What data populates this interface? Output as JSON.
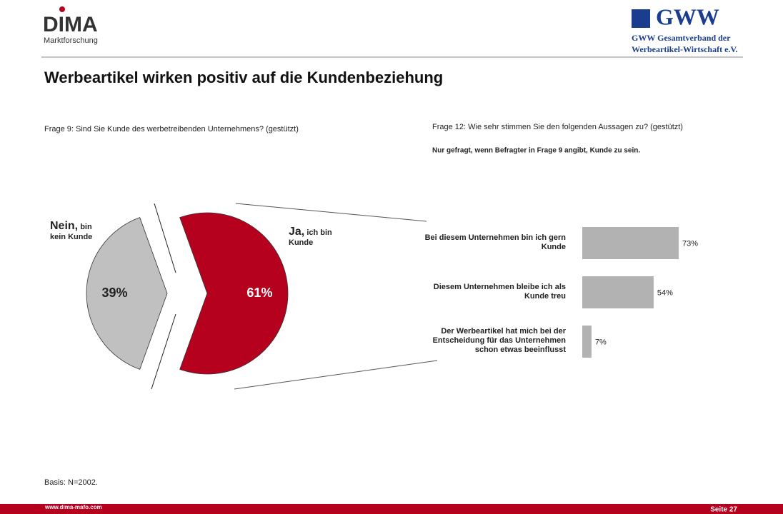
{
  "header": {
    "logo_left": "DIMA",
    "logo_left_sub": "Marktforschung",
    "logo_right": "GWW",
    "logo_right_line1": "GWW Gesamtverband der",
    "logo_right_line2": "Werbeartikel-Wirtschaft e.V."
  },
  "title": "Werbeartikel wirken positiv auf die Kundenbeziehung",
  "chart_data": [
    {
      "type": "pie",
      "subtitle": "Frage 9: Sind Sie Kunde des werbetreibenden Unternehmens? (gestützt)",
      "categories": [
        "Nein,",
        "Ja,"
      ],
      "category_notes": [
        "bin kein Kunde",
        "ich bin Kunde"
      ],
      "values": [
        39,
        61
      ],
      "value_labels": [
        "39%",
        "61%"
      ],
      "colors": [
        "#c0c0c0",
        "#b5001e"
      ]
    },
    {
      "type": "hbar",
      "subtitle": "Frage 12: Wie sehr stimmen Sie den folgenden Aussagen zu? (gestützt)",
      "note": "Nur gefragt, wenn Befragter in Frage 9 angibt, Kunde zu sein.",
      "categories": [
        "Bei diesem Unternehmen bin ich gern\nKunde",
        "Diesem Unternehmen bleibe ich als\nKunde treu",
        "Der Werbeartikel hat mich bei der\nEntscheidung für das Unternehmen\nschon etwas beeinflusst"
      ],
      "values": [
        73,
        54,
        7
      ],
      "value_labels": [
        "73%",
        "54%",
        "7%"
      ],
      "color": "#b2b2b2",
      "xlim": [
        0,
        100
      ]
    }
  ],
  "basis": "Basis: N=2002.",
  "footer": {
    "url": "www.dima-mafo.com",
    "page": "Seite 27"
  }
}
